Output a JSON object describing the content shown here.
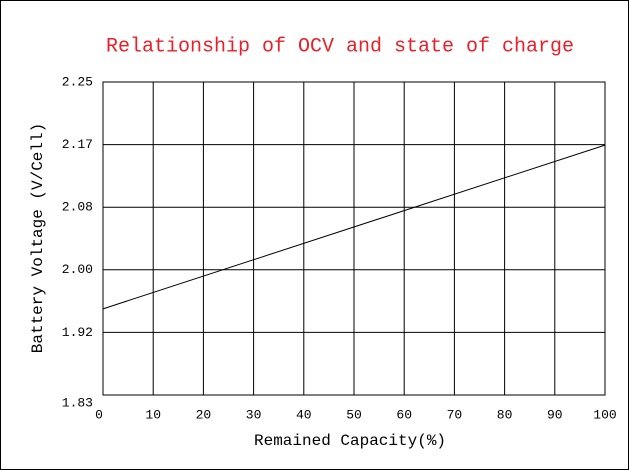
{
  "chart_data": {
    "type": "line",
    "title": "Relationship of OCV and state of charge",
    "title_color": "#e8202a",
    "x_label": "Remained Capacity(%)",
    "y_label": "Battery Voltage (V/Cell)",
    "x": [
      0,
      100
    ],
    "values": [
      1.948,
      2.166
    ],
    "color": "#000000",
    "xlim": [
      0,
      100
    ],
    "xticks": [
      0,
      10,
      20,
      30,
      40,
      50,
      60,
      70,
      80,
      90,
      100
    ],
    "ylim": [
      1.8333,
      2.25
    ],
    "yticks": [
      {
        "value": 1.8333,
        "label": "1.83"
      },
      {
        "value": 1.9167,
        "label": "1.92"
      },
      {
        "value": 2,
        "label": "2.00"
      },
      {
        "value": 2.0833,
        "label": "2.08"
      },
      {
        "value": 2.1667,
        "label": "2.17"
      },
      2.25
    ],
    "grid": true
  }
}
